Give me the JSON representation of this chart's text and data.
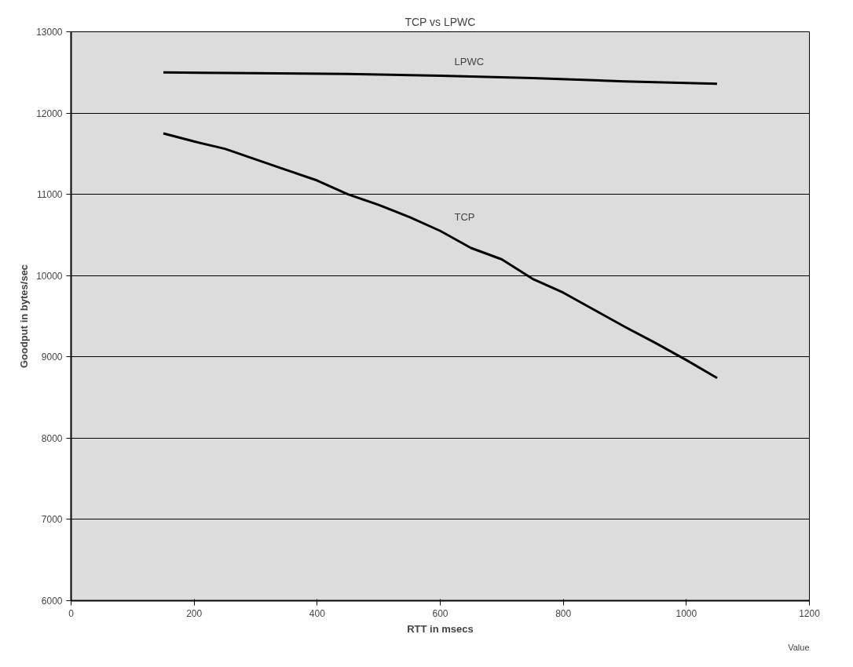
{
  "chart_data": {
    "type": "line",
    "title": "TCP vs LPWC",
    "xlabel": "RTT in msecs",
    "ylabel": "Goodput in bytes/sec",
    "series": [
      {
        "name": "LPWC",
        "color": "#000000",
        "x": [
          150,
          300,
          450,
          600,
          750,
          900,
          1050
        ],
        "values": [
          12500,
          12490,
          12480,
          12460,
          12430,
          12390,
          12360
        ]
      },
      {
        "name": "TCP",
        "color": "#000000",
        "x": [
          150,
          200,
          250,
          300,
          350,
          400,
          450,
          500,
          550,
          600,
          650,
          700,
          750,
          800,
          850,
          900,
          950,
          1000,
          1050
        ],
        "values": [
          11750,
          11650,
          11560,
          11430,
          11300,
          11170,
          11000,
          10870,
          10720,
          10550,
          10340,
          10200,
          9960,
          9790,
          9580,
          9370,
          9170,
          8960,
          8740
        ]
      }
    ],
    "annotations": [
      "Value"
    ],
    "xlim": [
      0,
      1200
    ],
    "xticks": [
      0,
      200,
      400,
      600,
      800,
      1000,
      1200
    ],
    "ylim": [
      6000,
      13000
    ],
    "yticks": [
      6000,
      7000,
      8000,
      9000,
      10000,
      11000,
      12000,
      13000
    ],
    "grid": "y",
    "legend": false,
    "marker": "none",
    "line_style": "solid"
  }
}
